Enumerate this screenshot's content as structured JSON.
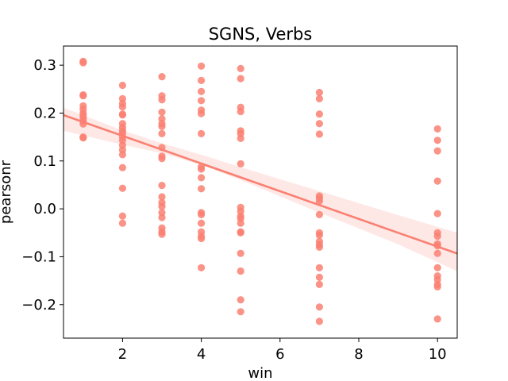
{
  "chart_data": {
    "type": "scatter",
    "title": "SGNS, Verbs",
    "xlabel": "win",
    "ylabel": "pearsonr",
    "xlim": [
      0.5,
      10.5
    ],
    "ylim": [
      -0.27,
      0.34
    ],
    "xticks": [
      2,
      4,
      6,
      8,
      10
    ],
    "yticks": [
      -0.2,
      -0.1,
      0.0,
      0.1,
      0.2,
      0.3
    ],
    "grid": false,
    "color": "#fa8072",
    "points": [
      [
        1,
        0.308
      ],
      [
        1,
        0.305
      ],
      [
        1,
        0.238
      ],
      [
        1,
        0.236
      ],
      [
        1,
        0.215
      ],
      [
        1,
        0.208
      ],
      [
        1,
        0.2
      ],
      [
        1,
        0.195
      ],
      [
        1,
        0.189
      ],
      [
        1,
        0.183
      ],
      [
        1,
        0.177
      ],
      [
        1,
        0.15
      ],
      [
        1,
        0.148
      ],
      [
        2,
        0.258
      ],
      [
        2,
        0.23
      ],
      [
        2,
        0.22
      ],
      [
        2,
        0.213
      ],
      [
        2,
        0.198
      ],
      [
        2,
        0.196
      ],
      [
        2,
        0.178
      ],
      [
        2,
        0.17
      ],
      [
        2,
        0.163
      ],
      [
        2,
        0.158
      ],
      [
        2,
        0.15
      ],
      [
        2,
        0.143
      ],
      [
        2,
        0.133
      ],
      [
        2,
        0.123
      ],
      [
        2,
        0.113
      ],
      [
        2,
        0.086
      ],
      [
        2,
        0.043
      ],
      [
        2,
        -0.015
      ],
      [
        2,
        -0.03
      ],
      [
        3,
        0.276
      ],
      [
        3,
        0.236
      ],
      [
        3,
        0.228
      ],
      [
        3,
        0.202
      ],
      [
        3,
        0.188
      ],
      [
        3,
        0.178
      ],
      [
        3,
        0.172
      ],
      [
        3,
        0.157
      ],
      [
        3,
        0.128
      ],
      [
        3,
        0.11
      ],
      [
        3,
        0.105
      ],
      [
        3,
        0.049
      ],
      [
        3,
        0.025
      ],
      [
        3,
        0.013
      ],
      [
        3,
        0.005
      ],
      [
        3,
        -0.008
      ],
      [
        3,
        -0.018
      ],
      [
        3,
        -0.04
      ],
      [
        3,
        -0.048
      ],
      [
        3,
        -0.053
      ],
      [
        4,
        0.298
      ],
      [
        4,
        0.268
      ],
      [
        4,
        0.245
      ],
      [
        4,
        0.226
      ],
      [
        4,
        0.206
      ],
      [
        4,
        0.199
      ],
      [
        4,
        0.157
      ],
      [
        4,
        0.088
      ],
      [
        4,
        0.083
      ],
      [
        4,
        0.065
      ],
      [
        4,
        0.042
      ],
      [
        4,
        -0.008
      ],
      [
        4,
        -0.012
      ],
      [
        4,
        -0.03
      ],
      [
        4,
        -0.048
      ],
      [
        4,
        -0.057
      ],
      [
        4,
        -0.062
      ],
      [
        4,
        -0.123
      ],
      [
        5,
        0.293
      ],
      [
        5,
        0.272
      ],
      [
        5,
        0.212
      ],
      [
        5,
        0.203
      ],
      [
        5,
        0.163
      ],
      [
        5,
        0.157
      ],
      [
        5,
        0.147
      ],
      [
        5,
        0.094
      ],
      [
        5,
        0.003
      ],
      [
        5,
        -0.005
      ],
      [
        5,
        -0.015
      ],
      [
        5,
        -0.02
      ],
      [
        5,
        -0.03
      ],
      [
        5,
        -0.048
      ],
      [
        5,
        -0.05
      ],
      [
        5,
        -0.093
      ],
      [
        5,
        -0.13
      ],
      [
        5,
        -0.19
      ],
      [
        5,
        -0.215
      ],
      [
        7,
        0.243
      ],
      [
        7,
        0.23
      ],
      [
        7,
        0.198
      ],
      [
        7,
        0.178
      ],
      [
        7,
        0.156
      ],
      [
        7,
        0.027
      ],
      [
        7,
        0.022
      ],
      [
        7,
        0.016
      ],
      [
        7,
        -0.012
      ],
      [
        7,
        -0.05
      ],
      [
        7,
        -0.055
      ],
      [
        7,
        -0.068
      ],
      [
        7,
        -0.075
      ],
      [
        7,
        -0.08
      ],
      [
        7,
        -0.123
      ],
      [
        7,
        -0.143
      ],
      [
        7,
        -0.158
      ],
      [
        7,
        -0.205
      ],
      [
        7,
        -0.235
      ],
      [
        10,
        0.167
      ],
      [
        10,
        0.143
      ],
      [
        10,
        0.121
      ],
      [
        10,
        0.058
      ],
      [
        10,
        -0.01
      ],
      [
        10,
        -0.05
      ],
      [
        10,
        -0.057
      ],
      [
        10,
        -0.073
      ],
      [
        10,
        -0.077
      ],
      [
        10,
        -0.093
      ],
      [
        10,
        -0.123
      ],
      [
        10,
        -0.14
      ],
      [
        10,
        -0.148
      ],
      [
        10,
        -0.158
      ],
      [
        10,
        -0.163
      ],
      [
        10,
        -0.23
      ]
    ],
    "regression": {
      "slope": -0.0289,
      "intercept": 0.2102
    },
    "confidence_band": [
      [
        0.5,
        0.163,
        0.211
      ],
      [
        2,
        0.134,
        0.164
      ],
      [
        3,
        0.116,
        0.137
      ],
      [
        4,
        0.092,
        0.113
      ],
      [
        5,
        0.06,
        0.087
      ],
      [
        6,
        0.026,
        0.062
      ],
      [
        7,
        -0.008,
        0.037
      ],
      [
        8,
        -0.041,
        0.012
      ],
      [
        9,
        -0.074,
        -0.013
      ],
      [
        10.5,
        -0.13,
        -0.05
      ]
    ]
  }
}
